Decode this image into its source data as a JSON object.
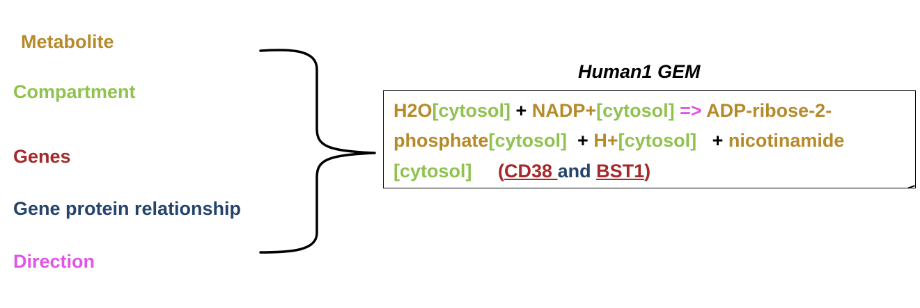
{
  "legend": {
    "metabolite": "Metabolite",
    "compartment": "Compartment",
    "genes": "Genes",
    "gene_protein_relationship": "Gene protein relationship",
    "direction": "Direction"
  },
  "gem_title": "Human1 GEM",
  "reaction": {
    "line1": {
      "m1": "H2O",
      "c1": "[cytosol]",
      "p1": " + ",
      "m2": "NADP+",
      "c2": "[cytosol]",
      "arrow": " => ",
      "m3a": "ADP-ribose-2-"
    },
    "line2": {
      "m3b": "phosphate",
      "c3": "[cytosol]",
      "p2": "  + ",
      "m4": "H+",
      "c4": "[cytosol]",
      "p3": "   + ",
      "m5": "nicotinamide"
    },
    "line3": {
      "c5": "[cytosol]",
      "gap": "     ",
      "open_paren": "(",
      "gene1": "CD38 ",
      "and": "and",
      "space": " ",
      "gene2": "BST1",
      "close_paren": ")"
    }
  },
  "colors": {
    "metabolite": "#b58a2a",
    "compartment": "#8fc24f",
    "genes": "#a5292a",
    "gene_protein_relationship": "#24446b",
    "direction": "#e055e7"
  }
}
